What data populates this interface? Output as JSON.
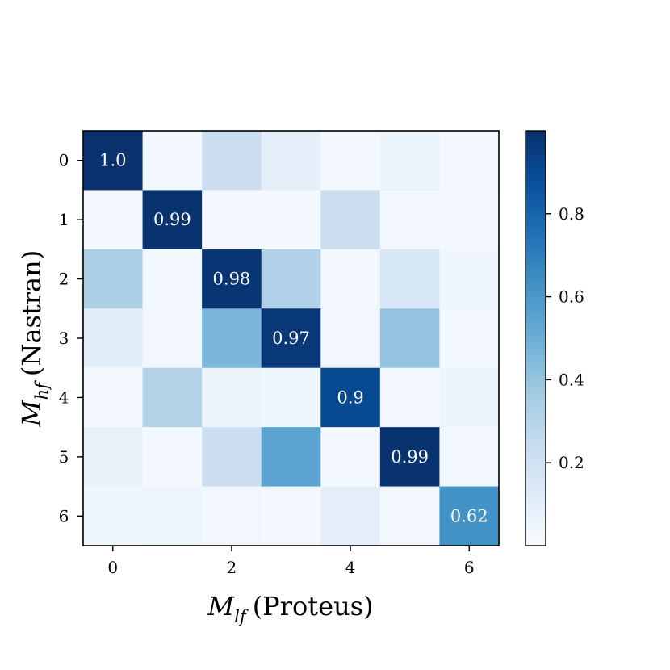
{
  "chart_data": {
    "type": "heatmap",
    "rows": 7,
    "cols": 7,
    "colormap": "Blues",
    "vmin": 0.0,
    "vmax": 1.0,
    "values": [
      [
        0.995,
        0.02,
        0.22,
        0.09,
        0.02,
        0.06,
        0.03
      ],
      [
        0.02,
        0.99,
        0.02,
        0.02,
        0.22,
        0.03,
        0.02
      ],
      [
        0.33,
        0.02,
        0.98,
        0.32,
        0.02,
        0.16,
        0.04
      ],
      [
        0.11,
        0.03,
        0.46,
        0.97,
        0.02,
        0.4,
        0.03
      ],
      [
        0.02,
        0.3,
        0.06,
        0.04,
        0.9,
        0.03,
        0.06
      ],
      [
        0.08,
        0.02,
        0.22,
        0.55,
        0.02,
        0.99,
        0.03
      ],
      [
        0.04,
        0.05,
        0.03,
        0.02,
        0.1,
        0.02,
        0.62
      ]
    ],
    "annotations": [
      {
        "row": 0,
        "col": 0,
        "text": "1.0"
      },
      {
        "row": 1,
        "col": 1,
        "text": "0.99"
      },
      {
        "row": 2,
        "col": 2,
        "text": "0.98"
      },
      {
        "row": 3,
        "col": 3,
        "text": "0.97"
      },
      {
        "row": 4,
        "col": 4,
        "text": "0.9"
      },
      {
        "row": 5,
        "col": 5,
        "text": "0.99"
      },
      {
        "row": 6,
        "col": 6,
        "text": "0.62"
      }
    ],
    "xticks": [
      0,
      2,
      4,
      6
    ],
    "yticks": [
      0,
      1,
      2,
      3,
      4,
      5,
      6
    ],
    "xlabel_math": "M",
    "xlabel_sub": "lf",
    "xlabel_text": "(Proteus)",
    "ylabel_math": "M",
    "ylabel_sub": "hf",
    "ylabel_text": "(Nastran)",
    "colorbar": {
      "ticks": [
        0.2,
        0.4,
        0.6,
        0.8
      ],
      "range": [
        0.0,
        1.0
      ],
      "placement": "right"
    }
  }
}
